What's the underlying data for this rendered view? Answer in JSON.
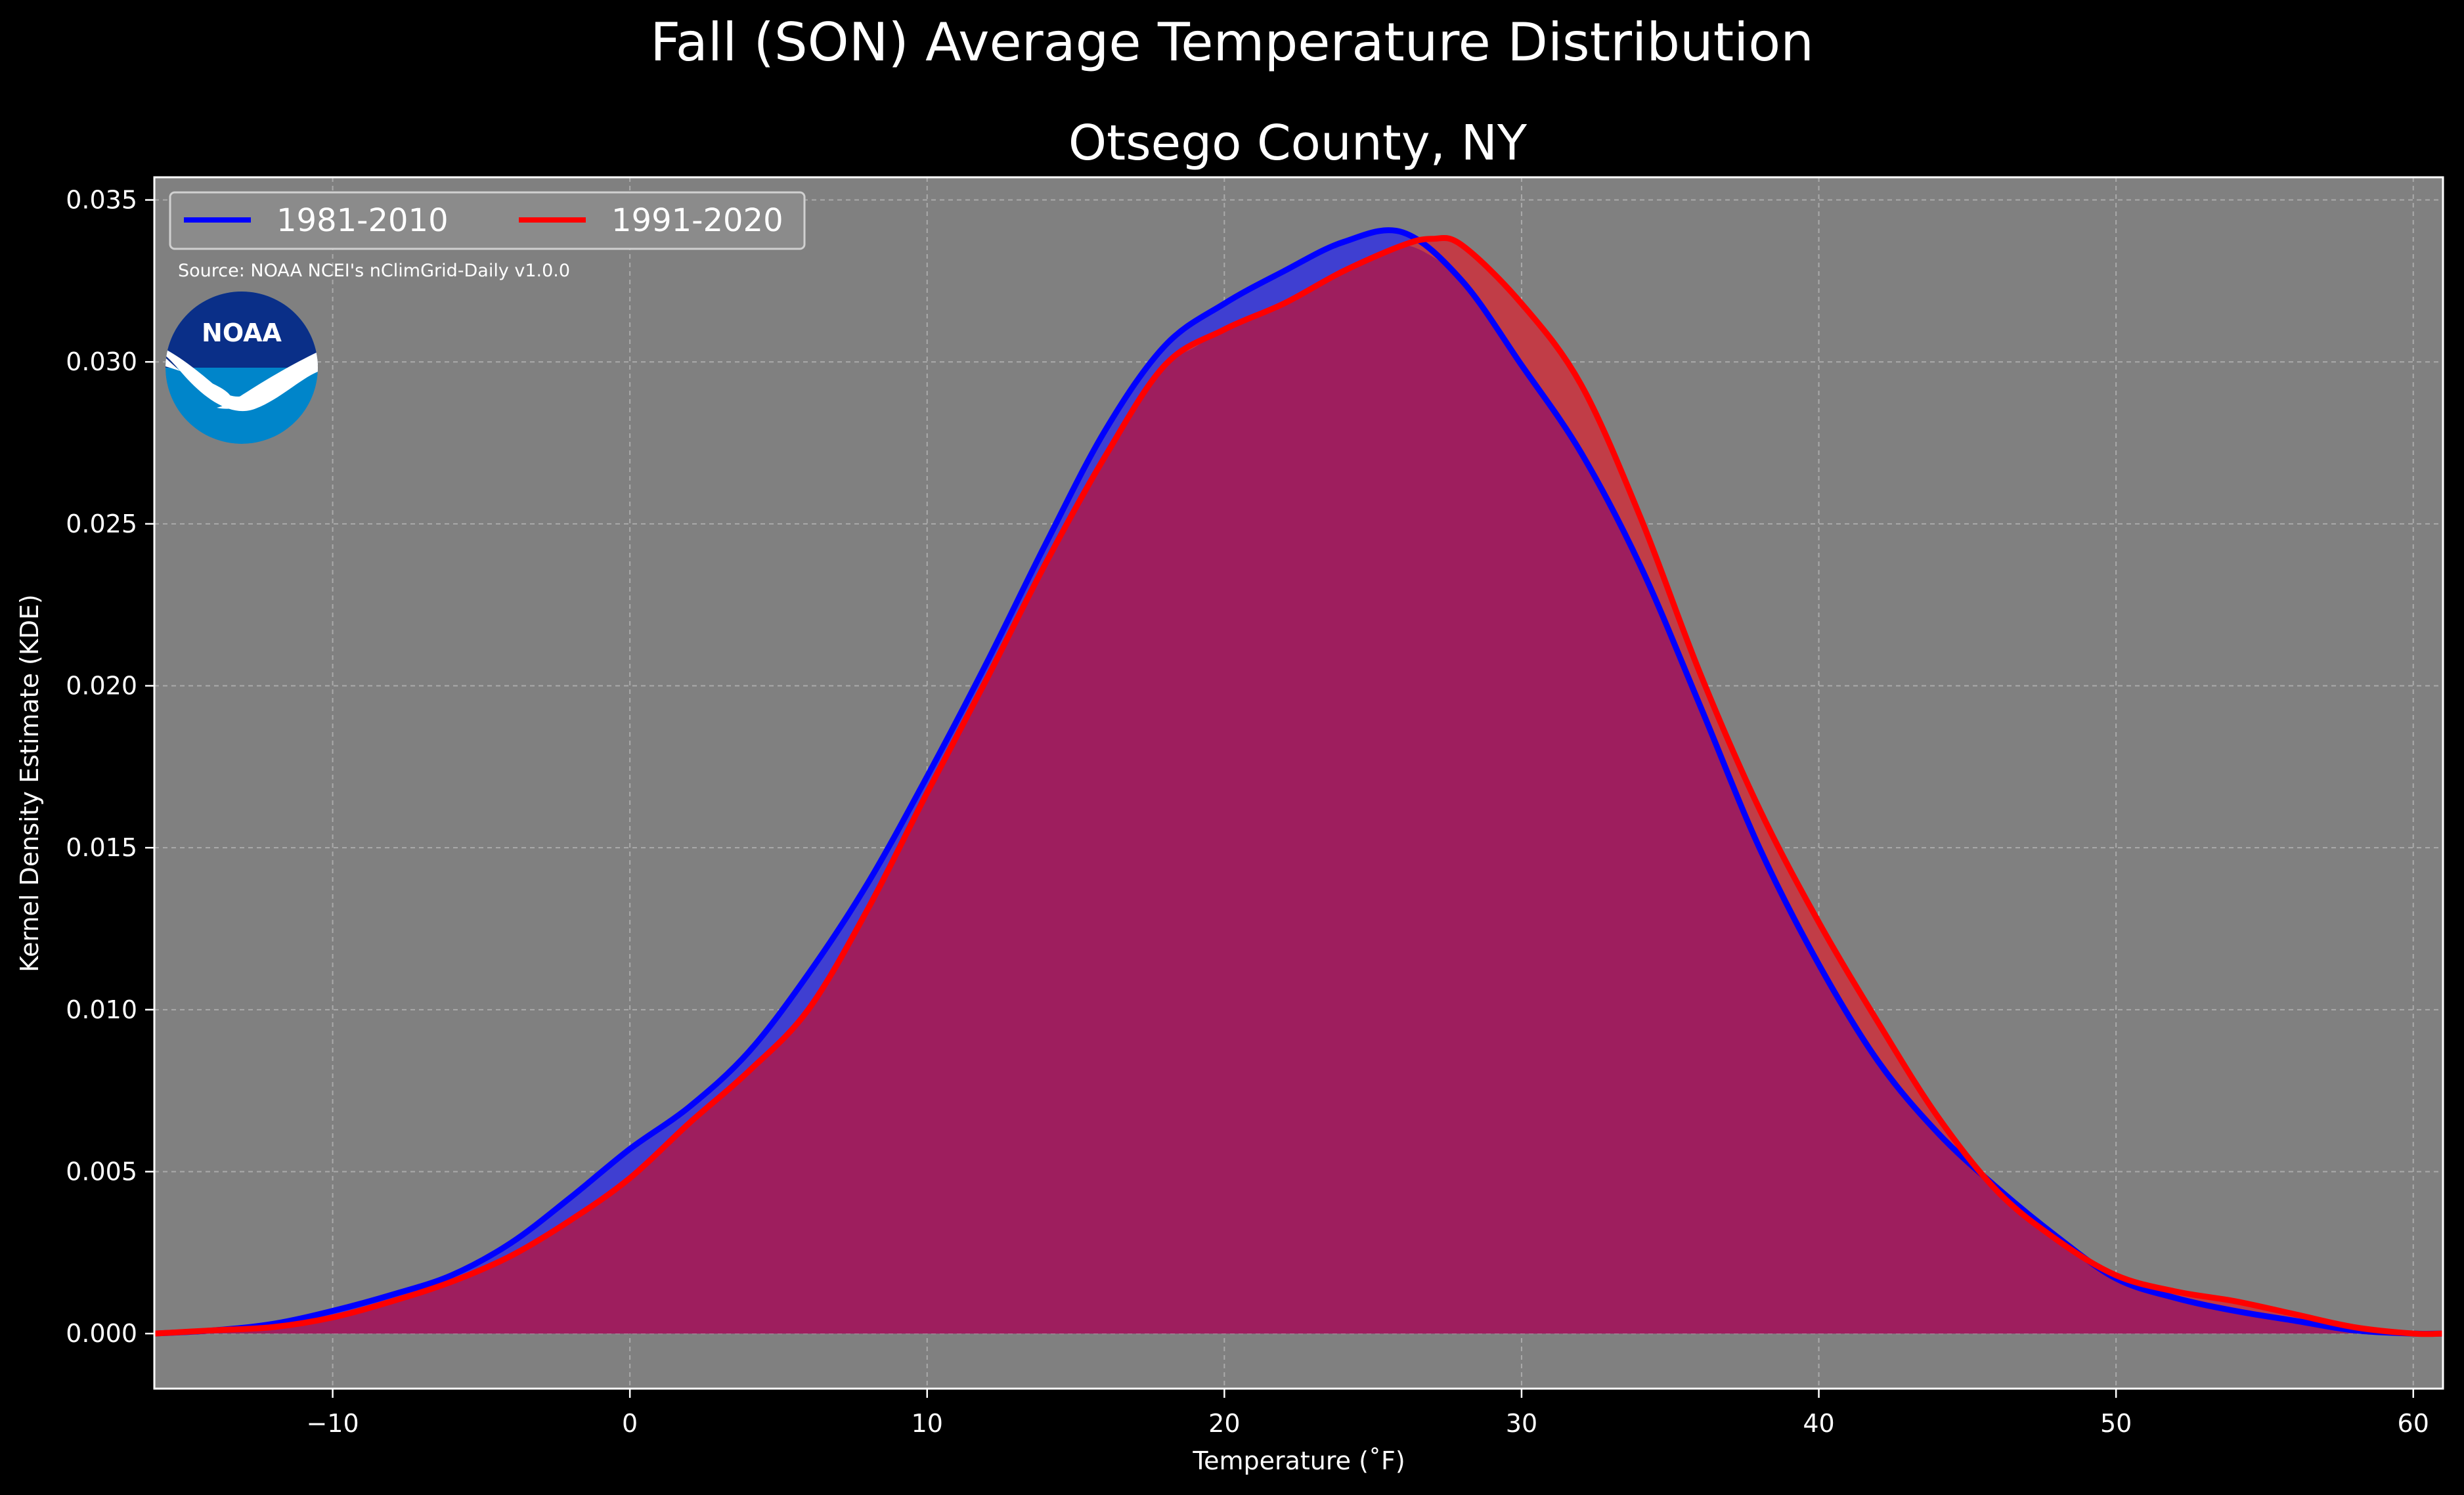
{
  "chart_data": {
    "type": "area",
    "suptitle": "Fall (SON) Average Temperature Distribution",
    "title": "Otsego County, NY",
    "xlabel": "Temperature (˚F)",
    "ylabel": "Kernel Density Estimate (KDE)",
    "xlim": [
      -16,
      61
    ],
    "ylim": [
      -0.0017,
      0.0357
    ],
    "xticks": [
      -10,
      0,
      10,
      20,
      30,
      40,
      50,
      60
    ],
    "xtick_labels": [
      "−10",
      "0",
      "10",
      "20",
      "30",
      "40",
      "50",
      "60"
    ],
    "yticks": [
      0.0,
      0.005,
      0.01,
      0.015,
      0.02,
      0.025,
      0.03,
      0.035
    ],
    "ytick_labels": [
      "0.000",
      "0.005",
      "0.010",
      "0.015",
      "0.020",
      "0.025",
      "0.030",
      "0.035"
    ],
    "grid": true,
    "legend_location": "top-left",
    "legend_columns": 2,
    "source_note": "Source: NOAA NCEI's nClimGrid-Daily v1.0.0",
    "logo": {
      "name": "noaa-logo-icon",
      "text": "NOAA",
      "colors": {
        "top": "#0a2f88",
        "bottom": "#0085ca",
        "band": "#ffffff"
      }
    },
    "colors": {
      "figure_background": "#000000",
      "plot_background": "#808080",
      "text": "#ffffff"
    },
    "series": [
      {
        "name": "1981-2010",
        "line_color": "#0000ff",
        "fill_color": "#3f3fd1",
        "x": [
          -16,
          -14,
          -12,
          -10,
          -8,
          -6,
          -4,
          -2,
          0,
          2,
          4,
          6,
          8,
          10,
          12,
          14,
          16,
          18,
          20,
          22,
          24,
          26,
          28,
          30,
          32,
          34,
          36,
          38,
          40,
          42,
          44,
          46,
          48,
          50,
          52,
          54,
          56,
          58,
          60,
          61
        ],
        "y": [
          0.0,
          0.0001,
          0.0003,
          0.0007,
          0.0012,
          0.0018,
          0.0028,
          0.0042,
          0.0057,
          0.007,
          0.0087,
          0.0111,
          0.0139,
          0.0172,
          0.0207,
          0.0244,
          0.0279,
          0.0305,
          0.0318,
          0.0328,
          0.0337,
          0.034,
          0.0325,
          0.0299,
          0.0272,
          0.0237,
          0.0194,
          0.015,
          0.0114,
          0.0084,
          0.0062,
          0.0045,
          0.003,
          0.0017,
          0.0011,
          0.0007,
          0.0004,
          0.0001,
          0.0,
          0.0
        ]
      },
      {
        "name": "1991-2020",
        "line_color": "#ff0000",
        "fill_color": "#c13d47",
        "x": [
          -16,
          -14,
          -12,
          -10,
          -8,
          -6,
          -4,
          -2,
          0,
          2,
          4,
          6,
          8,
          10,
          12,
          14,
          16,
          18,
          20,
          22,
          24,
          26,
          27,
          28,
          30,
          32,
          34,
          36,
          38,
          40,
          42,
          44,
          46,
          48,
          50,
          52,
          54,
          56,
          58,
          60,
          61
        ],
        "y": [
          0.0,
          0.0001,
          0.0002,
          0.0005,
          0.001,
          0.0016,
          0.0024,
          0.0035,
          0.0048,
          0.0065,
          0.0081,
          0.01,
          0.0131,
          0.0167,
          0.0202,
          0.0238,
          0.0271,
          0.0299,
          0.031,
          0.0318,
          0.0328,
          0.0336,
          0.0338,
          0.0336,
          0.0318,
          0.0293,
          0.0252,
          0.0204,
          0.0162,
          0.0127,
          0.0096,
          0.0067,
          0.0044,
          0.0029,
          0.0018,
          0.0013,
          0.001,
          0.0006,
          0.0002,
          0.0,
          0.0
        ]
      }
    ],
    "overlap_fill_color": "#9e1e5e"
  }
}
